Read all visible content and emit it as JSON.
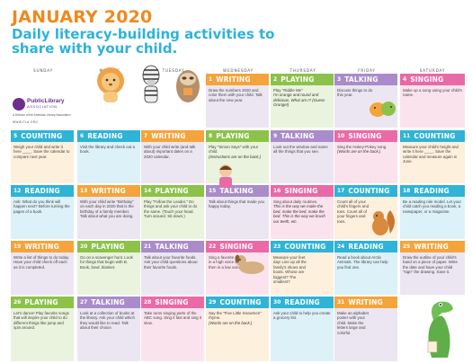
{
  "header": {
    "title": "JANUARY 2020",
    "subtitle": "Daily literacy-building activities to share with your child."
  },
  "days": [
    "SUNDAY",
    "MONDAY",
    "TUESDAY",
    "WEDNESDAY",
    "THURSDAY",
    "FRIDAY",
    "SATURDAY"
  ],
  "logo": {
    "name": "PublicLibrary",
    "sub": "ASSOCIATION",
    "tagline": "A Division of the American Library Association",
    "url": "WWW.PLA.ORG"
  },
  "cells": [
    {
      "n": "1",
      "cat": "WRITING",
      "text": "Draw the numbers 2020 and color them with your child. Talk about the new year.",
      "note": "",
      "bg": "bg-lav"
    },
    {
      "n": "2",
      "cat": "PLAYING",
      "text": "Play \"Riddle Me\"",
      "note": "I'm orange and round and delicious. What am I? (Guess Orange!)",
      "bg": "bg-green"
    },
    {
      "n": "3",
      "cat": "TALKING",
      "text": "Discuss things to do this year.",
      "note": "",
      "bg": "bg-lav"
    },
    {
      "n": "4",
      "cat": "SINGING",
      "text": "Make up a song using your child's name.",
      "note": "",
      "bg": "bg-pink"
    },
    {
      "n": "5",
      "cat": "COUNTING",
      "text": "Weigh your child and write it here ____. Save the calendar to compare next year.",
      "note": "",
      "bg": "bg-yellow"
    },
    {
      "n": "6",
      "cat": "READING",
      "text": "Visit the library and check out a book.",
      "note": "",
      "bg": "bg-blue"
    },
    {
      "n": "7",
      "cat": "WRITING",
      "text": "With your child write (and talk about) important dates on a 2020 calendar.",
      "note": "",
      "bg": "bg-lav"
    },
    {
      "n": "8",
      "cat": "PLAYING",
      "text": "Play \"Simon Says\" with your child.",
      "note": "(Instructions are on the back.)",
      "bg": "bg-green"
    },
    {
      "n": "9",
      "cat": "TALKING",
      "text": "Look out the window and name all the things that you see.",
      "note": "",
      "bg": "bg-lav"
    },
    {
      "n": "10",
      "cat": "SINGING",
      "text": "Sing the Hokey-Pokey song.",
      "note": "(Words are on the back.)",
      "bg": "bg-pink"
    },
    {
      "n": "11",
      "cat": "COUNTING",
      "text": "Measure your child's height and write it here ____. Save the calendar and measure again in June.",
      "note": "",
      "bg": "bg-yellow"
    },
    {
      "n": "12",
      "cat": "READING",
      "text": "Ask: What do you think will happen next? Before turning the pages of a book.",
      "note": "",
      "bg": "bg-blue"
    },
    {
      "n": "13",
      "cat": "WRITING",
      "text": "With your child write \"Birthday\" on each day in 2020 that is the birthday of a family member. Talk about what you are doing.",
      "note": "",
      "bg": "bg-lav"
    },
    {
      "n": "14",
      "cat": "PLAYING",
      "text": "Play \"Follow the Leader.\" Do things and ask your child to do the same. (Touch your head. Turn around. Sit down.)",
      "note": "",
      "bg": "bg-green"
    },
    {
      "n": "15",
      "cat": "TALKING",
      "text": "Talk about things that made you happy today.",
      "note": "",
      "bg": "bg-lav"
    },
    {
      "n": "16",
      "cat": "SINGING",
      "text": "Sing about daily routines.",
      "note": "This is the way we make the bed, make the bed, make the bed. This is the way we brush our teeth, etc.",
      "bg": "bg-pink"
    },
    {
      "n": "17",
      "cat": "COUNTING",
      "text": "Count all of your child's fingers and toes. Count all of your fingers and toes.",
      "note": "",
      "bg": "bg-yellow"
    },
    {
      "n": "18",
      "cat": "READING",
      "text": "Be a reading role model. Let your child catch you reading a book, a newspaper, or a magazine.",
      "note": "",
      "bg": "bg-blue"
    },
    {
      "n": "19",
      "cat": "WRITING",
      "text": "Write a list of things to do today. Have your child check off each as it is completed.",
      "note": "",
      "bg": "bg-lav"
    },
    {
      "n": "20",
      "cat": "PLAYING",
      "text": "Go on a scavenger hunt. Look for things that begin with B. Book, bowl, blanket.",
      "note": "",
      "bg": "bg-green"
    },
    {
      "n": "21",
      "cat": "TALKING",
      "text": "Talk about your favorite foods. Ask your child questions about their favorite foods.",
      "note": "",
      "bg": "bg-lav"
    },
    {
      "n": "22",
      "cat": "SINGING",
      "text": "Sing a favorite song in a high voice and then in a low voice.",
      "note": "",
      "bg": "bg-pink"
    },
    {
      "n": "23",
      "cat": "COUNTING",
      "text": "Measure your feet day! Line up all the family's shoes and boots. Whose are biggest? The smallest?",
      "note": "",
      "bg": "bg-yellow"
    },
    {
      "n": "24",
      "cat": "READING",
      "text": "Read a book about Arctic Animals. The library can help you find one.",
      "note": "",
      "bg": "bg-blue"
    },
    {
      "n": "25",
      "cat": "WRITING",
      "text": "Draw the outline of your child's hand on a piece of paper. Write the date and have your child \"sign\" the drawing. Save it.",
      "note": "",
      "bg": "bg-lav"
    },
    {
      "n": "26",
      "cat": "PLAYING",
      "text": "Let's dance! Play favorite songs that will inspire your child to do different things like jump and spin around.",
      "note": "",
      "bg": "bg-green"
    },
    {
      "n": "27",
      "cat": "TALKING",
      "text": "Look at a collection of books at the library. Ask your child which they would like to read. Talk about their choice.",
      "note": "",
      "bg": "bg-lav"
    },
    {
      "n": "28",
      "cat": "SINGING",
      "text": "Take turns singing parts of the ABC song. Sing it fast and sing it slow.",
      "note": "",
      "bg": "bg-pink"
    },
    {
      "n": "29",
      "cat": "COUNTING",
      "text": "Say the \"Five Little Snowmen\" rhyme.",
      "note": "(Words are on the back.)",
      "bg": "bg-yellow"
    },
    {
      "n": "30",
      "cat": "READING",
      "text": "Ask your child to help you create a grocery list.",
      "note": "",
      "bg": "bg-blue"
    },
    {
      "n": "31",
      "cat": "WRITING",
      "text": "Make an alphabet poster with your child. Make the letters large and colorful.",
      "note": "",
      "bg": "bg-lav"
    }
  ],
  "colors": {
    "title": "#ee8a1f",
    "subtitle": "#2fb3d6",
    "writing": "#f4a43b",
    "playing": "#8cc24a",
    "talking": "#a98cc9",
    "singing": "#e96aa6",
    "counting": "#f4a43b",
    "reading": "#2fb3d6"
  },
  "icons": [
    "lion-icon",
    "zebra-icon",
    "sloth-icon",
    "bird-icon",
    "girl-icon",
    "squirrel-icon",
    "dog-icon",
    "crocodile-icon"
  ]
}
